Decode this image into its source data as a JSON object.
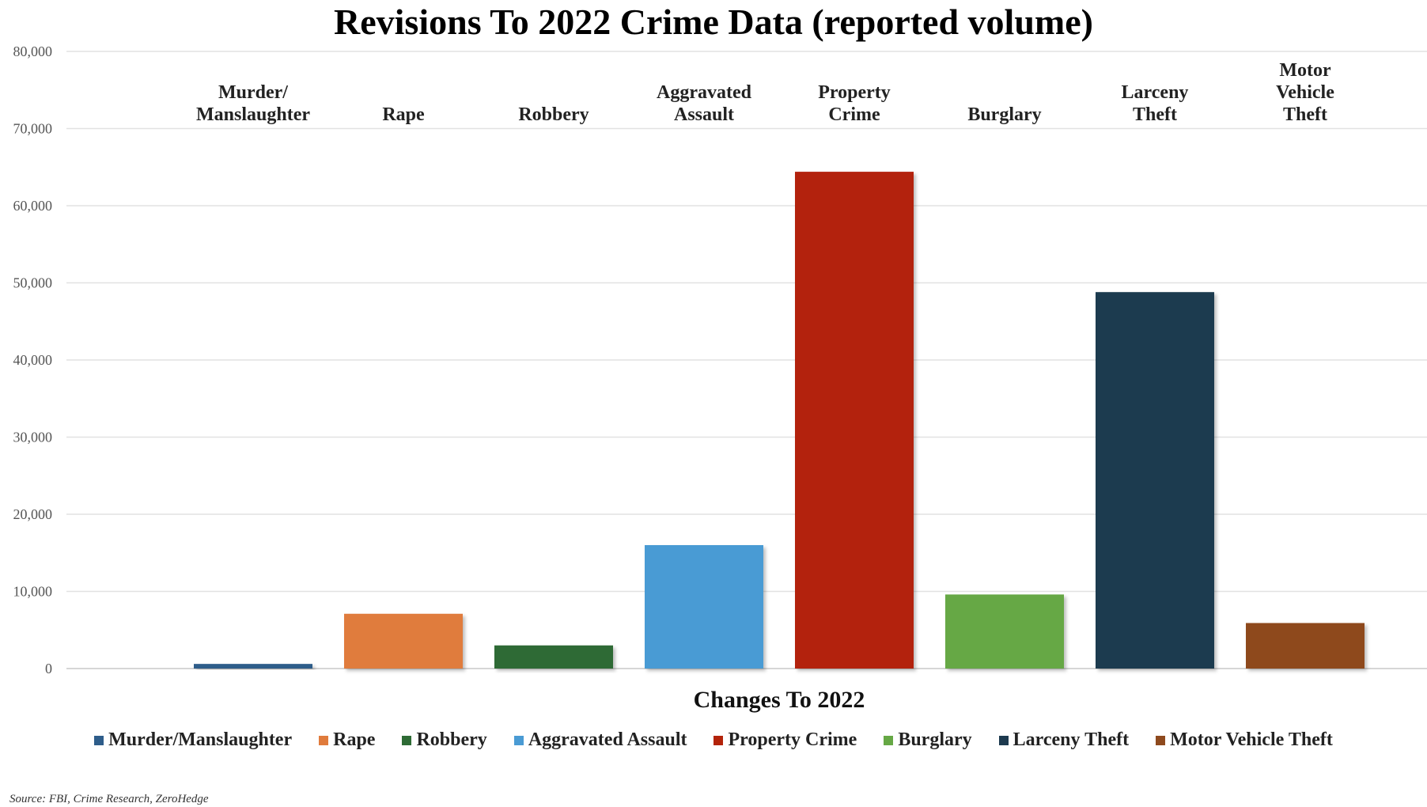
{
  "chart_data": {
    "type": "bar",
    "title": "Revisions To 2022 Crime Data (reported volume)",
    "xlabel": "Changes To 2022",
    "ylabel": "",
    "ylim": [
      0,
      80000
    ],
    "yticks": [
      0,
      10000,
      20000,
      30000,
      40000,
      50000,
      60000,
      70000,
      80000
    ],
    "ytick_labels": [
      "0",
      "10,000",
      "20,000",
      "30,000",
      "40,000",
      "50,000",
      "60,000",
      "70,000",
      "80,000"
    ],
    "grid": true,
    "legend_position": "bottom",
    "series": [
      {
        "name": "Murder/Manslaughter",
        "label_lines": [
          "Murder/",
          "Manslaughter"
        ],
        "value": 600,
        "color": "#2e5d8a"
      },
      {
        "name": "Rape",
        "label_lines": [
          "Rape"
        ],
        "value": 7100,
        "color": "#e07b3c"
      },
      {
        "name": "Robbery",
        "label_lines": [
          "Robbery"
        ],
        "value": 3000,
        "color": "#2e6b35"
      },
      {
        "name": "Aggravated Assault",
        "label_lines": [
          "Aggravated",
          "Assault"
        ],
        "value": 16000,
        "color": "#4a9bd4"
      },
      {
        "name": "Property Crime",
        "label_lines": [
          "Property",
          "Crime"
        ],
        "value": 64400,
        "color": "#b3230a"
      },
      {
        "name": "Burglary",
        "label_lines": [
          "Burglary"
        ],
        "value": 9600,
        "color": "#66a845"
      },
      {
        "name": "Larceny Theft",
        "label_lines": [
          "Larceny",
          "Theft"
        ],
        "value": 48800,
        "color": "#1d3a4f"
      },
      {
        "name": "Motor Vehicle Theft",
        "label_lines": [
          "Motor",
          "Vehicle",
          "Theft"
        ],
        "value": 5900,
        "color": "#8e4a1e"
      }
    ]
  },
  "source_note": "Source: FBI, Crime Research, ZeroHedge"
}
